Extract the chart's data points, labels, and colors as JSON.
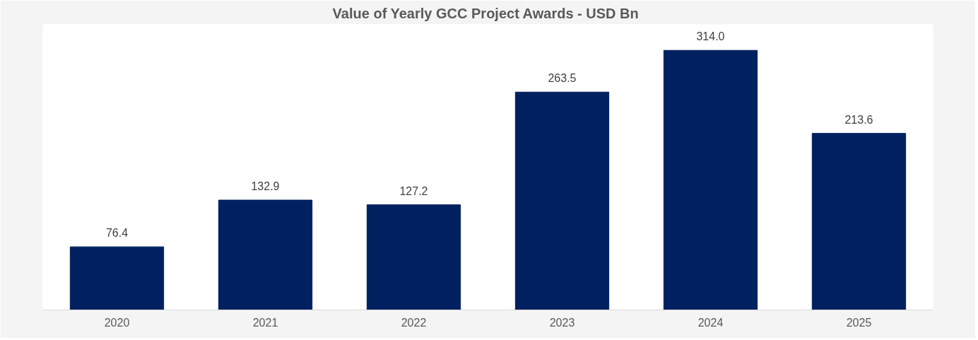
{
  "chart_data": {
    "type": "bar",
    "title": "Value of Yearly GCC Project Awards  - USD Bn",
    "categories": [
      "2020",
      "2021",
      "2022",
      "2023",
      "2024",
      "2025"
    ],
    "values": [
      76.4,
      132.9,
      127.2,
      263.5,
      314.0,
      213.6
    ],
    "color": "#002060",
    "value_labels": [
      "76.4",
      "132.9",
      "127.2",
      "263.5",
      "314.0",
      "213.6"
    ],
    "grid": false
  }
}
